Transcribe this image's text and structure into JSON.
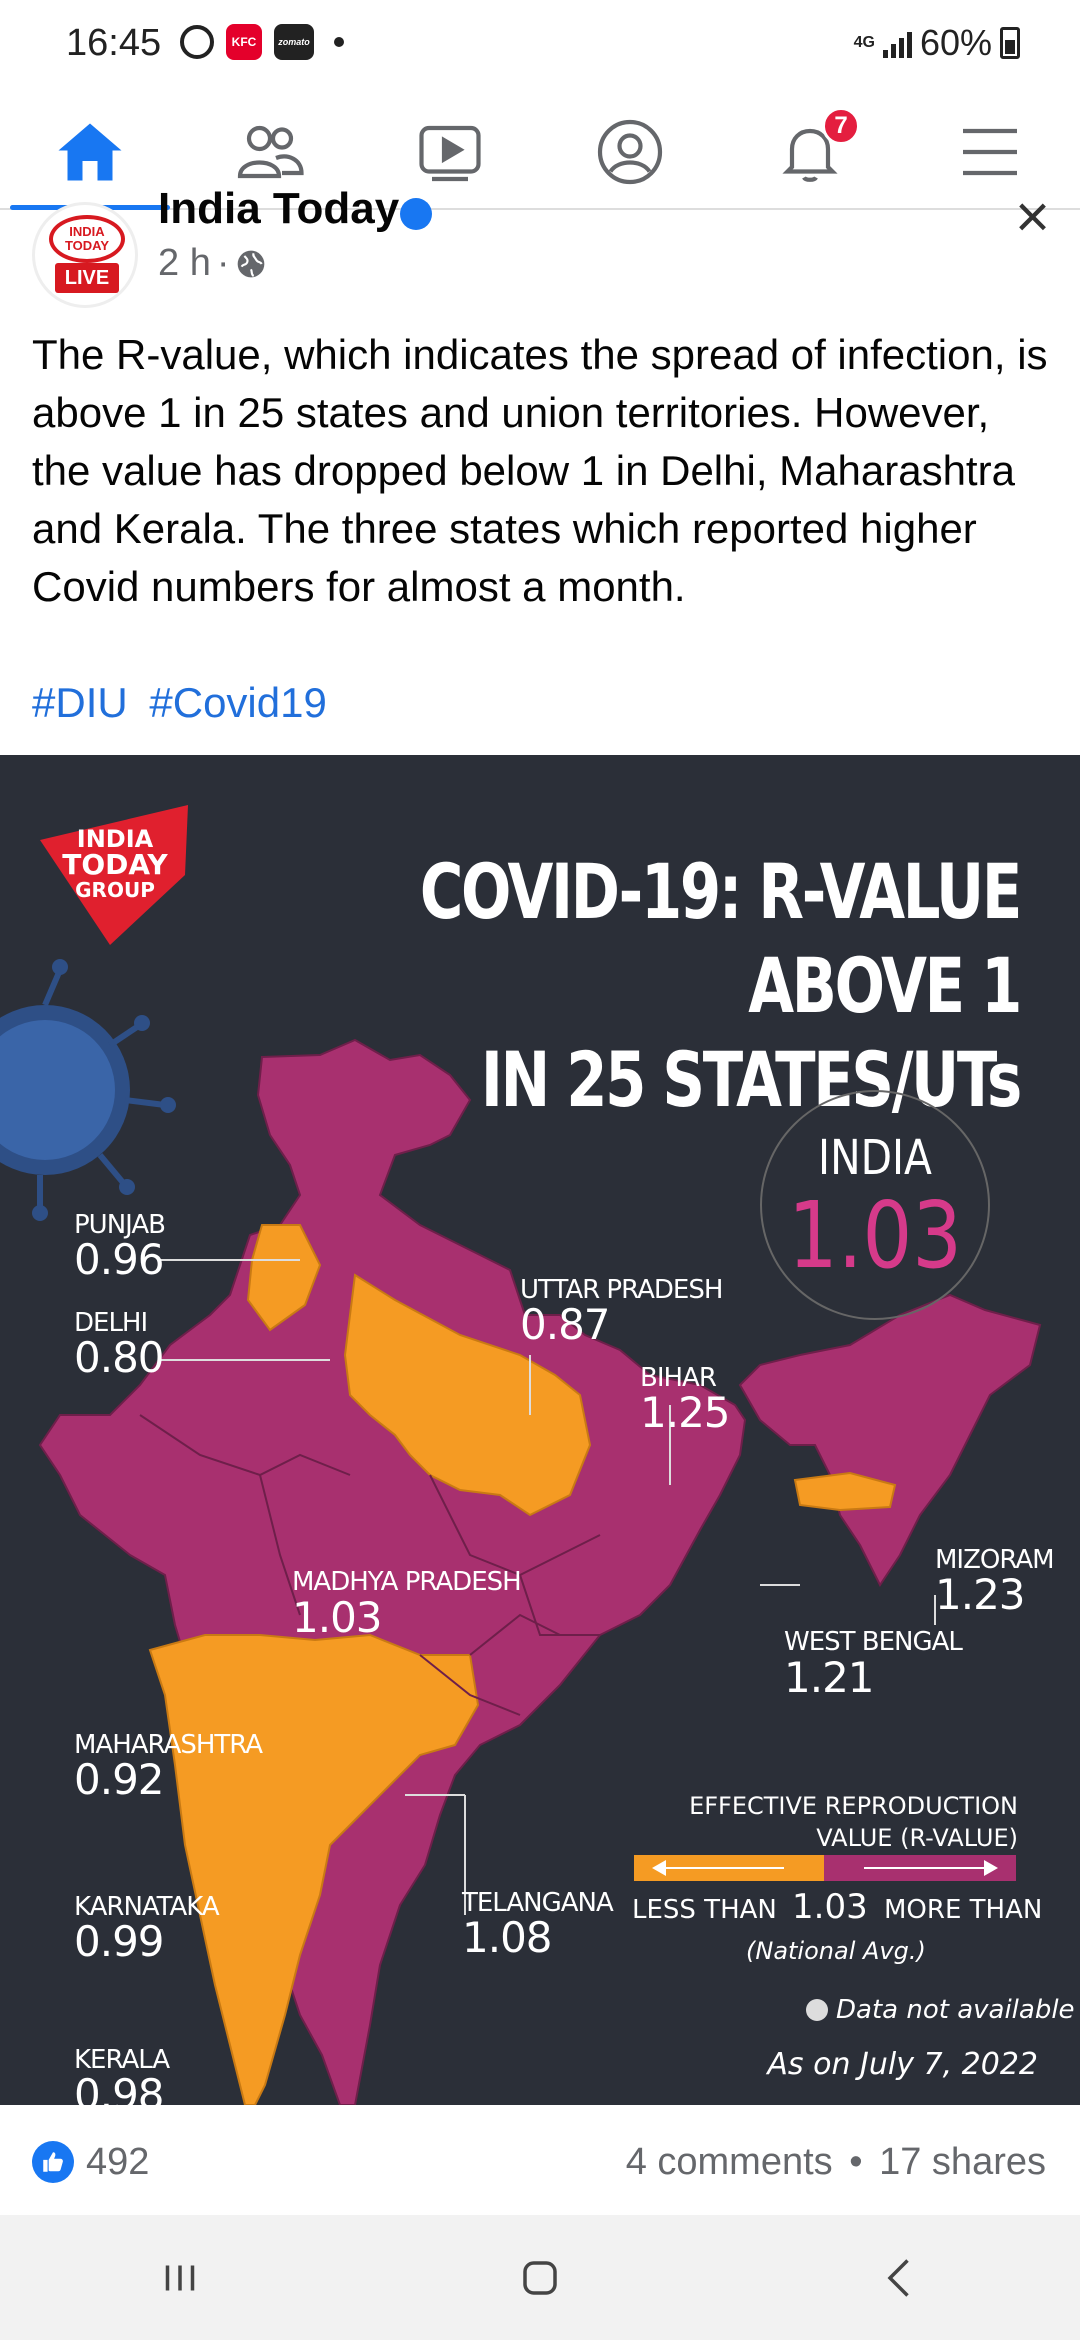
{
  "status_bar": {
    "time": "16:45",
    "network": "4G",
    "battery": "60%",
    "app_icons": [
      "threads-icon",
      "kfc-icon",
      "zomato-icon"
    ],
    "zomato_text": "zomato"
  },
  "nav": {
    "items": [
      "home",
      "friends",
      "watch",
      "profile",
      "notifications",
      "menu"
    ],
    "notification_count": "7",
    "active_color": "#1877f2"
  },
  "post": {
    "page_name": "India Today",
    "avatar_text": "INDIA TODAY",
    "avatar_badge": "LIVE",
    "time": "2 h",
    "separator": "·",
    "text": "The R-value, which indicates the spread of infection, is above 1 in 25 states and union territories. However, the value has dropped below 1 in Delhi, Maharashtra and Kerala. The three states which reported higher Covid numbers for almost a month.",
    "hashtags": [
      "#DIU",
      "#Covid19"
    ]
  },
  "infographic": {
    "logo_line1": "INDIA",
    "logo_line2": "TODAY",
    "logo_line3": "GROUP",
    "title_line1": "COVID-19: R-VALUE ABOVE 1",
    "title_line2": "IN 25 STATES/UTs",
    "national_label": "INDIA",
    "national_value": "1.03",
    "colors": {
      "above": "#a8306f",
      "below": "#f59b23",
      "background": "#2b2f38"
    },
    "states": [
      {
        "name": "PUNJAB",
        "value": "0.96"
      },
      {
        "name": "DELHI",
        "value": "0.80"
      },
      {
        "name": "UTTAR PRADESH",
        "value": "0.87"
      },
      {
        "name": "BIHAR",
        "value": "1.25"
      },
      {
        "name": "MIZORAM",
        "value": "1.23"
      },
      {
        "name": "MADHYA PRADESH",
        "value": "1.03"
      },
      {
        "name": "WEST BENGAL",
        "value": "1.21"
      },
      {
        "name": "MAHARASHTRA",
        "value": "0.92"
      },
      {
        "name": "TELANGANA",
        "value": "1.08"
      },
      {
        "name": "KARNATAKA",
        "value": "0.99"
      },
      {
        "name": "KERALA",
        "value": "0.98"
      }
    ],
    "legend": {
      "title_line1": "EFFECTIVE REPRODUCTION",
      "title_line2": "VALUE (R-VALUE)",
      "less": "LESS THAN",
      "national": "1.03",
      "more": "MORE THAN",
      "national_label": "(National Avg.)",
      "not_available": "Data not available",
      "date": "As on July 7, 2022"
    }
  },
  "reactions": {
    "likes": "492",
    "comments": "4 comments",
    "separator": "•",
    "shares": "17 shares"
  },
  "system_nav": [
    "recent-apps",
    "home",
    "back"
  ]
}
